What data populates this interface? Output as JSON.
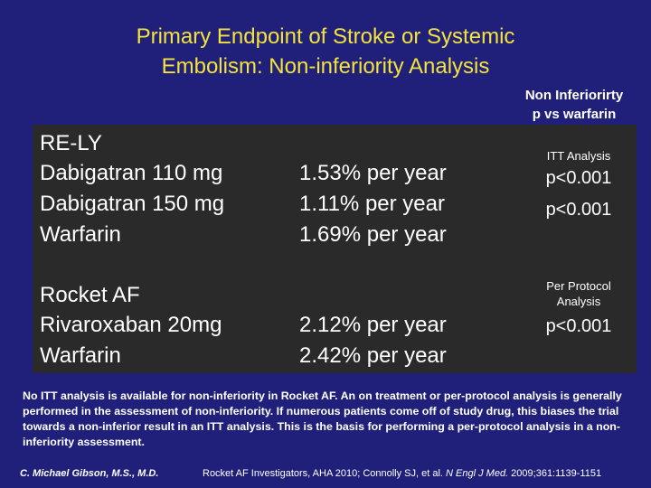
{
  "title": {
    "line1": "Primary Endpoint of Stroke or Systemic",
    "line2": "Embolism: Non-inferiority Analysis"
  },
  "header_note": {
    "line1": "Non Inferiorirty",
    "line2": "p vs warfarin"
  },
  "trials": [
    {
      "name": "RE-LY",
      "analysis_label": "ITT Analysis",
      "arms": [
        {
          "drug": "Dabigatran 110 mg",
          "rate": "1.53% per year",
          "p": "p<0.001"
        },
        {
          "drug": "Dabigatran 150 mg",
          "rate": "1.11% per year",
          "p": "p<0.001"
        },
        {
          "drug": "Warfarin",
          "rate": "1.69% per year",
          "p": ""
        }
      ]
    },
    {
      "name": "Rocket AF",
      "analysis_label_line1": "Per Protocol",
      "analysis_label_line2": "Analysis",
      "arms": [
        {
          "drug": "Rivaroxaban 20mg",
          "rate": "2.12% per year",
          "p": "p<0.001"
        },
        {
          "drug": "Warfarin",
          "rate": "2.42% per year",
          "p": ""
        }
      ]
    }
  ],
  "footnote": "No ITT analysis is available for non-inferiority in Rocket AF.  An on treatment or per-protocol analysis is generally performed in the assessment of non-inferiority.  If numerous patients come off of study drug, this biases the trial towards a non-inferior result in an ITT analysis. This is the basis for performing a per-protocol analysis in a non-inferiority assessment.",
  "author": "C. Michael Gibson, M.S., M.D.",
  "citation": {
    "prefix": "Rocket AF Investigators, AHA 2010; Connolly SJ, et al. ",
    "journal": "N Engl J Med.",
    "suffix": " 2009;361:1139-1151"
  }
}
